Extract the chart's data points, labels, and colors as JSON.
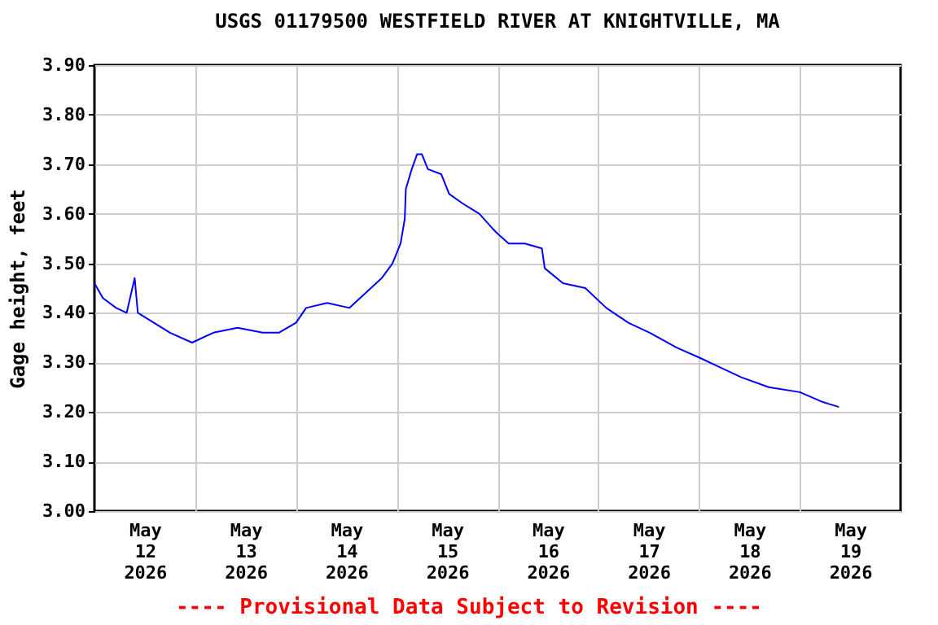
{
  "chart_data": {
    "type": "line",
    "title": "USGS 01179500 WESTFIELD RIVER AT KNIGHTVILLE, MA",
    "ylabel": "Gage height, feet",
    "annotations": [
      "---- Provisional Data Subject to Revision ----"
    ],
    "x": [
      "2026-05-12T00:00",
      "2026-05-12T02:00",
      "2026-05-12T05:10",
      "2026-05-12T07:40",
      "2026-05-12T09:35",
      "2026-05-12T10:20",
      "2026-05-12T14:10",
      "2026-05-12T18:00",
      "2026-05-12T23:15",
      "2026-05-13T04:20",
      "2026-05-13T10:05",
      "2026-05-13T16:05",
      "2026-05-13T19:55",
      "2026-05-14T00:00",
      "2026-05-14T02:25",
      "2026-05-14T07:25",
      "2026-05-14T12:45",
      "2026-05-14T16:35",
      "2026-05-14T20:25",
      "2026-05-14T23:00",
      "2026-05-15T00:55",
      "2026-05-15T01:55",
      "2026-05-15T02:10",
      "2026-05-15T03:35",
      "2026-05-15T04:50",
      "2026-05-15T06:00",
      "2026-05-15T07:25",
      "2026-05-15T10:35",
      "2026-05-15T12:30",
      "2026-05-15T15:50",
      "2026-05-15T19:40",
      "2026-05-15T22:50",
      "2026-05-16T00:00",
      "2026-05-16T02:40",
      "2026-05-16T06:30",
      "2026-05-16T10:35",
      "2026-05-16T11:15",
      "2026-05-16T15:35",
      "2026-05-16T20:55",
      "2026-05-17T01:55",
      "2026-05-17T07:10",
      "2026-05-17T12:15",
      "2026-05-17T18:40",
      "2026-05-18T00:00",
      "2026-05-18T05:00",
      "2026-05-18T10:05",
      "2026-05-18T16:35",
      "2026-05-19T00:00",
      "2026-05-19T05:30",
      "2026-05-19T09:20"
    ],
    "series": [
      {
        "color": "#0000ff",
        "values": [
          3.46,
          3.43,
          3.41,
          3.4,
          3.47,
          3.4,
          3.38,
          3.36,
          3.34,
          3.36,
          3.37,
          3.36,
          3.36,
          3.38,
          3.41,
          3.42,
          3.41,
          3.44,
          3.47,
          3.5,
          3.54,
          3.59,
          3.65,
          3.69,
          3.72,
          3.72,
          3.69,
          3.68,
          3.64,
          3.62,
          3.6,
          3.57,
          3.56,
          3.54,
          3.54,
          3.53,
          3.49,
          3.46,
          3.45,
          3.41,
          3.38,
          3.36,
          3.33,
          3.31,
          3.29,
          3.27,
          3.25,
          3.24,
          3.22,
          3.21
        ]
      }
    ],
    "xlim": [
      "2026-05-12T00:00",
      "2026-05-20T00:00"
    ],
    "xticks": [
      {
        "value": "2026-05-12T12:00",
        "label": "May\n12\n2026"
      },
      {
        "value": "2026-05-13T00:00",
        "label": null
      },
      {
        "value": "2026-05-13T12:00",
        "label": "May\n13\n2026"
      },
      {
        "value": "2026-05-14T00:00",
        "label": null
      },
      {
        "value": "2026-05-14T12:00",
        "label": "May\n14\n2026"
      },
      {
        "value": "2026-05-15T00:00",
        "label": null
      },
      {
        "value": "2026-05-15T12:00",
        "label": "May\n15\n2026"
      },
      {
        "value": "2026-05-16T00:00",
        "label": null
      },
      {
        "value": "2026-05-16T12:00",
        "label": "May\n16\n2026"
      },
      {
        "value": "2026-05-17T00:00",
        "label": null
      },
      {
        "value": "2026-05-17T12:00",
        "label": "May\n17\n2026"
      },
      {
        "value": "2026-05-18T00:00",
        "label": null
      },
      {
        "value": "2026-05-18T12:00",
        "label": "May\n18\n2026"
      },
      {
        "value": "2026-05-19T00:00",
        "label": null
      },
      {
        "value": "2026-05-19T12:00",
        "label": "May\n19\n2026"
      }
    ],
    "ylim": [
      3.0,
      3.9
    ],
    "yticks": [
      {
        "value": 3.0,
        "label": "3.00"
      },
      {
        "value": 3.1,
        "label": "3.10"
      },
      {
        "value": 3.2,
        "label": "3.20"
      },
      {
        "value": 3.3,
        "label": "3.30"
      },
      {
        "value": 3.4,
        "label": "3.40"
      },
      {
        "value": 3.5,
        "label": "3.50"
      },
      {
        "value": 3.6,
        "label": "3.60"
      },
      {
        "value": 3.7,
        "label": "3.70"
      },
      {
        "value": 3.8,
        "label": "3.80"
      },
      {
        "value": 3.9,
        "label": "3.90"
      }
    ],
    "grid": true
  }
}
